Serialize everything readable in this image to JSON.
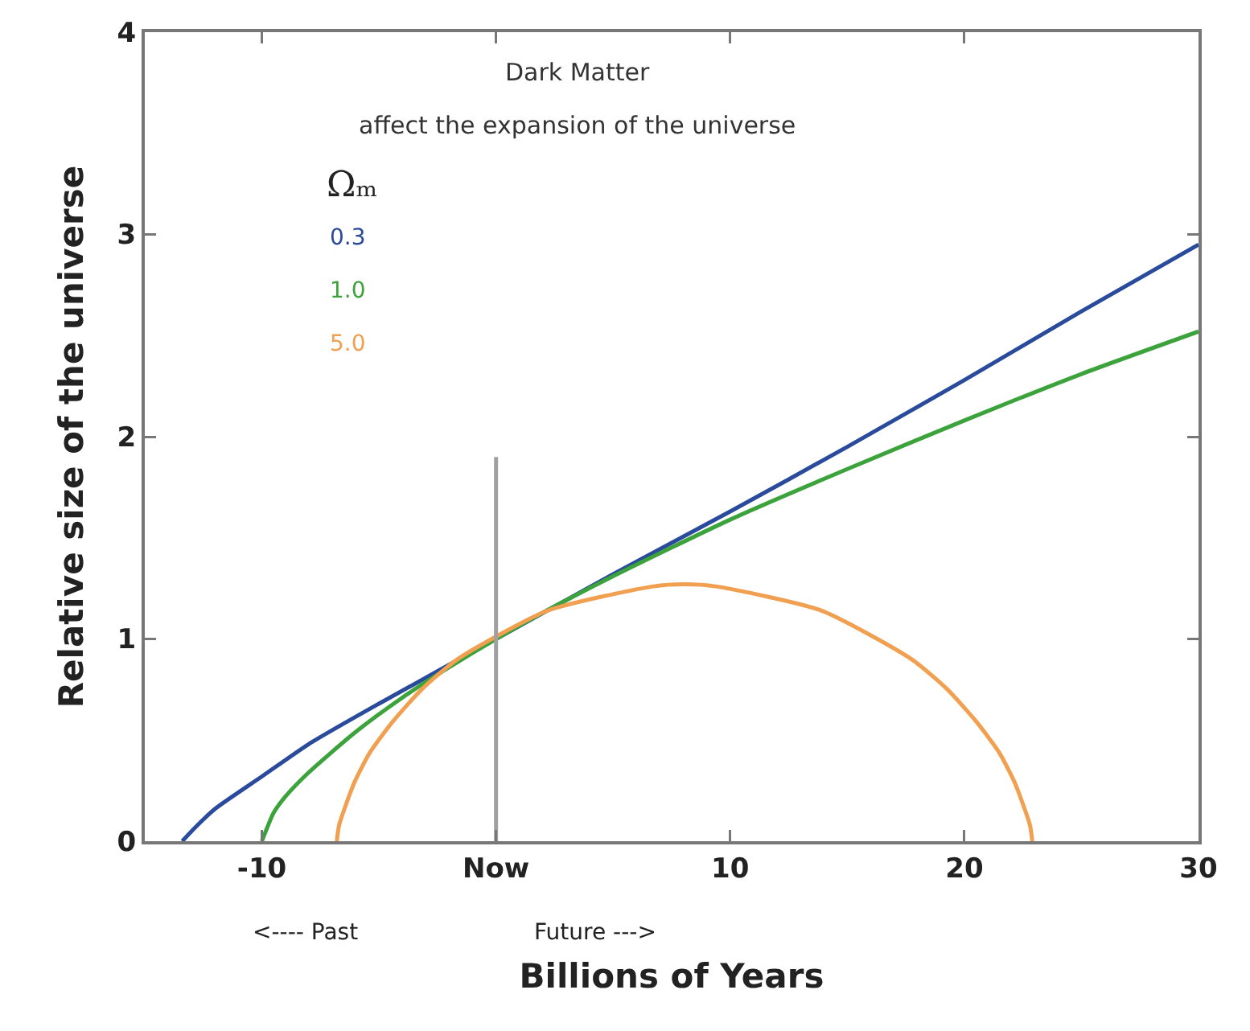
{
  "chart_data": {
    "type": "line",
    "xlabel": "Billions of Years",
    "ylabel": "Relative size of the universe",
    "legend_title": "Ωₘ",
    "legend": "top left",
    "grid": false,
    "marker": "none",
    "line_style": "solid",
    "xlim": [
      -15,
      30
    ],
    "xticks": [
      -10,
      {
        "value": 0,
        "label": "Now"
      },
      10,
      20,
      30
    ],
    "ylim": [
      0,
      4
    ],
    "yticks": [
      0,
      1,
      2,
      3,
      4
    ],
    "annotations": [
      "Dark Matter",
      "affect the expansion of the universe",
      "<---- Past",
      "Future --->"
    ],
    "series": [
      {
        "name": "0.3",
        "color": "#2a4a9c",
        "x": [
          -13.4,
          -13,
          -12,
          -10,
          -8,
          -5,
          0,
          5,
          10,
          15,
          20,
          25,
          30
        ],
        "values": [
          0,
          0.05,
          0.16,
          0.32,
          0.48,
          0.68,
          1,
          1.32,
          1.63,
          1.95,
          2.28,
          2.62,
          2.95
        ]
      },
      {
        "name": "1.0",
        "color": "#3ca33c",
        "x": [
          -10,
          -9.5,
          -9,
          -8,
          -6,
          -4,
          -2,
          0,
          2,
          5,
          10,
          15,
          20,
          25,
          30
        ],
        "values": [
          0,
          0.14,
          0.22,
          0.34,
          0.54,
          0.71,
          0.86,
          1,
          1.13,
          1.31,
          1.59,
          1.84,
          2.08,
          2.31,
          2.52
        ]
      },
      {
        "name": "5.0",
        "color": "#f0a050",
        "x": [
          -6.8,
          -6.7,
          -6.05,
          -5.38,
          -4.42,
          -3.18,
          -1.64,
          2.2,
          6.72,
          8.05,
          9.38,
          13.9,
          17.74,
          19.28,
          20.52,
          21.48,
          22.15,
          22.8,
          22.9
        ],
        "values": [
          0,
          0.08,
          0.29,
          0.44,
          0.59,
          0.75,
          0.9,
          1.14,
          1.26,
          1.27,
          1.26,
          1.14,
          0.9,
          0.75,
          0.59,
          0.44,
          0.29,
          0.08,
          0
        ]
      },
      {
        "color": "#a0a0a0",
        "x": [
          0,
          0
        ],
        "values": [
          0,
          1.9
        ]
      }
    ]
  }
}
